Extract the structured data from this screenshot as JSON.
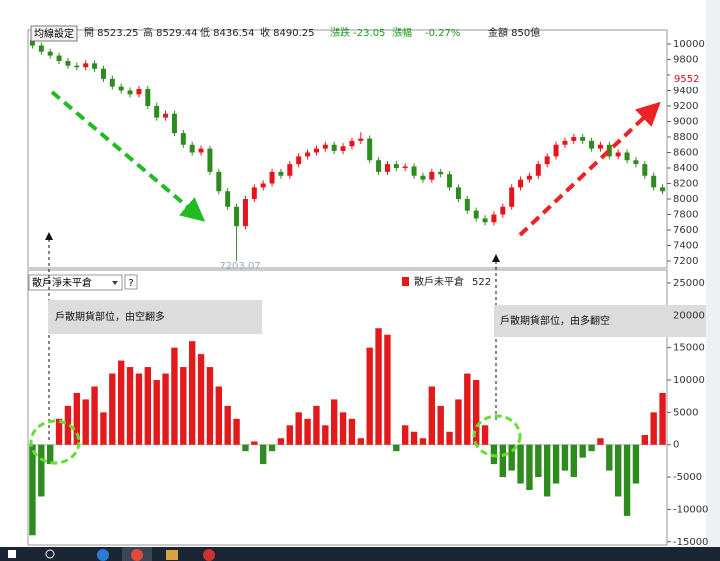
{
  "chart_data": [
    {
      "type": "candlestick",
      "button": "均線設定",
      "header": [
        "開 8523.25",
        "高 8529.44",
        "低 8436.54",
        "收 8490.25",
        "漲跌 -23.05",
        "漲幅",
        "-0.27%",
        "金額 850億"
      ],
      "up_color": "#e8141c",
      "down_color": "#2e8b1e",
      "open": [
        10050,
        9980,
        9900,
        9850,
        9780,
        9720,
        9700,
        9750,
        9680,
        9550,
        9450,
        9400,
        9350,
        9420,
        9200,
        9050,
        9100,
        8850,
        8700,
        8600,
        8650,
        8350,
        8100,
        7900,
        7650,
        8000,
        8150,
        8200,
        8350,
        8300,
        8450,
        8550,
        8600,
        8650,
        8700,
        8620,
        8680,
        8750,
        8780,
        8500,
        8350,
        8450,
        8400,
        8420,
        8300,
        8250,
        8350,
        8320,
        8150,
        8000,
        7850,
        7750,
        7700,
        7800,
        7900,
        8150,
        8250,
        8300,
        8450,
        8550,
        8700,
        8750,
        8800,
        8750,
        8650,
        8700,
        8550,
        8600,
        8500,
        8450,
        8300,
        8150
      ],
      "high": [
        10090,
        10020,
        9940,
        9890,
        9820,
        9760,
        9790,
        9790,
        9720,
        9590,
        9490,
        9440,
        9460,
        9460,
        9240,
        9140,
        9140,
        8890,
        8740,
        8690,
        8690,
        8390,
        8140,
        7940,
        8040,
        8190,
        8240,
        8390,
        8390,
        8490,
        8590,
        8640,
        8690,
        8740,
        8740,
        8720,
        8790,
        8860,
        8820,
        8540,
        8490,
        8490,
        8460,
        8460,
        8340,
        8390,
        8390,
        8360,
        8190,
        8040,
        7890,
        7790,
        7840,
        7940,
        8190,
        8290,
        8340,
        8490,
        8590,
        8740,
        8790,
        8840,
        8840,
        8790,
        8740,
        8740,
        8640,
        8640,
        8540,
        8490,
        8340,
        8190
      ],
      "low": [
        9940,
        9860,
        9810,
        9740,
        9680,
        9660,
        9660,
        9640,
        9510,
        9410,
        9360,
        9310,
        9310,
        9160,
        9010,
        9010,
        8810,
        8660,
        8560,
        8560,
        8310,
        8060,
        7860,
        7203.07,
        7610,
        7960,
        8110,
        8160,
        8260,
        8260,
        8410,
        8510,
        8560,
        8610,
        8580,
        8580,
        8640,
        8710,
        8460,
        8310,
        8310,
        8360,
        8360,
        8260,
        8210,
        8210,
        8280,
        8110,
        7960,
        7810,
        7710,
        7660,
        7660,
        7760,
        7860,
        8110,
        8210,
        8260,
        8410,
        8510,
        8660,
        8710,
        8710,
        8610,
        8610,
        8510,
        8510,
        8460,
        8410,
        8260,
        8110,
        8060
      ],
      "close": [
        9980,
        9900,
        9850,
        9780,
        9720,
        9700,
        9750,
        9680,
        9550,
        9450,
        9400,
        9350,
        9420,
        9200,
        9050,
        9100,
        8850,
        8700,
        8600,
        8650,
        8350,
        8100,
        7900,
        7650,
        8000,
        8150,
        8200,
        8350,
        8300,
        8450,
        8550,
        8600,
        8650,
        8700,
        8620,
        8680,
        8750,
        8780,
        8500,
        8350,
        8450,
        8400,
        8420,
        8300,
        8250,
        8350,
        8320,
        8150,
        8000,
        7850,
        7750,
        7700,
        7800,
        7900,
        8150,
        8250,
        8300,
        8450,
        8550,
        8700,
        8750,
        8800,
        8750,
        8650,
        8700,
        8550,
        8600,
        8500,
        8450,
        8300,
        8150,
        8100
      ],
      "ylim": [
        7110,
        10180
      ],
      "yticks": [
        7200,
        7400,
        7600,
        7800,
        8000,
        8200,
        8400,
        8600,
        8800,
        9000,
        9200,
        9400,
        9600,
        9800,
        10000
      ],
      "annotations": [
        {
          "text": "7203.07",
          "color": "#9ab"
        },
        {
          "text": "9552",
          "color": "#d0101a"
        }
      ]
    },
    {
      "type": "bar",
      "selector": "散戶淨未平倉",
      "help": "?",
      "legend_value": 522,
      "series": [
        {
          "name": "散戶未平倉",
          "color": "#e31a1c",
          "negative_color": "#2e8b1e",
          "values": [
            -14000,
            -8000,
            -3000,
            4000,
            6000,
            8000,
            7000,
            9000,
            5000,
            11000,
            13000,
            12000,
            11000,
            12000,
            10000,
            11000,
            15000,
            12000,
            16000,
            14000,
            12000,
            9000,
            6000,
            4000,
            -1000,
            500,
            -3000,
            -1000,
            1000,
            3000,
            5000,
            4000,
            6000,
            3000,
            7000,
            5000,
            4000,
            1000,
            15000,
            18000,
            17000,
            -1000,
            3000,
            2000,
            1000,
            9000,
            6000,
            2000,
            7000,
            11000,
            10000,
            3000,
            -3000,
            -5000,
            -4000,
            -6000,
            -7000,
            -5000,
            -8000,
            -6000,
            -4000,
            -5000,
            -2000,
            -1000,
            1000,
            -4000,
            -8000,
            -11000,
            -6000,
            1500,
            5000,
            8000
          ]
        }
      ],
      "ylim": [
        -15500,
        27000
      ],
      "yticks": [
        -15000,
        -10000,
        -5000,
        0,
        5000,
        10000,
        15000,
        20000,
        25000
      ],
      "annotations": [
        {
          "text": "戶散期貨部位，由空翻多"
        },
        {
          "text": "戶散期貨部位，由多翻空"
        }
      ]
    }
  ]
}
